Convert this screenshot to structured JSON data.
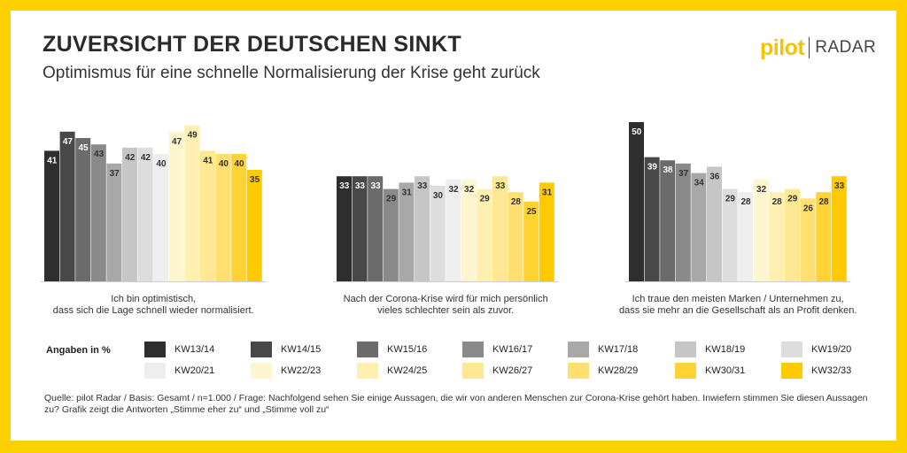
{
  "title": "ZUVERSICHT DER DEUTSCHEN SINKT",
  "subtitle": "Optimismus für eine schnelle Normalisierung der Krise geht zurück",
  "logo": {
    "brand": "pilot",
    "product": "RADAR",
    "colors": {
      "brand": "#f3c400"
    }
  },
  "chart_data": {
    "type": "bar",
    "ylim": [
      0,
      55
    ],
    "legend_title": "Angaben in %",
    "series": [
      {
        "name": "KW13/14",
        "color": "#2e2e2e"
      },
      {
        "name": "KW14/15",
        "color": "#484848"
      },
      {
        "name": "KW15/16",
        "color": "#6b6b6b"
      },
      {
        "name": "KW16/17",
        "color": "#8a8a8a"
      },
      {
        "name": "KW17/18",
        "color": "#a8a8a8"
      },
      {
        "name": "KW18/19",
        "color": "#c6c6c6"
      },
      {
        "name": "KW19/20",
        "color": "#dddddd"
      },
      {
        "name": "KW20/21",
        "color": "#eeeeee"
      },
      {
        "name": "KW22/23",
        "color": "#fff6cf"
      },
      {
        "name": "KW24/25",
        "color": "#fff0b2"
      },
      {
        "name": "KW26/27",
        "color": "#ffe894"
      },
      {
        "name": "KW28/29",
        "color": "#ffdf70"
      },
      {
        "name": "KW30/31",
        "color": "#ffd334"
      },
      {
        "name": "KW32/33",
        "color": "#ffcb00"
      }
    ],
    "groups": [
      {
        "label_lines": [
          "Ich bin optimistisch,",
          "dass sich die Lage schnell wieder normalisiert."
        ],
        "values": [
          41,
          47,
          45,
          43,
          37,
          42,
          42,
          40,
          47,
          49,
          41,
          40,
          40,
          35
        ]
      },
      {
        "label_lines": [
          "Nach der Corona-Krise wird für mich persönlich",
          "vieles schlechter sein als zuvor."
        ],
        "values": [
          33,
          33,
          33,
          29,
          31,
          33,
          30,
          32,
          32,
          29,
          33,
          28,
          25,
          31
        ]
      },
      {
        "label_lines": [
          "Ich traue den meisten Marken / Unternehmen zu,",
          "dass sie mehr an die Gesellschaft als an Profit denken."
        ],
        "values": [
          50,
          39,
          38,
          37,
          34,
          36,
          29,
          28,
          32,
          28,
          29,
          26,
          28,
          33
        ]
      }
    ]
  },
  "source": "Quelle: pilot Radar / Basis: Gesamt / n=1.000 / Frage: Nachfolgend sehen Sie einige Aussagen, die wir von anderen Menschen zur Corona-Krise gehört haben. Inwiefern stimmen Sie diesen Aussagen zu? Grafik zeigt die Antworten „Stimme eher zu“ und „Stimme voll zu“"
}
